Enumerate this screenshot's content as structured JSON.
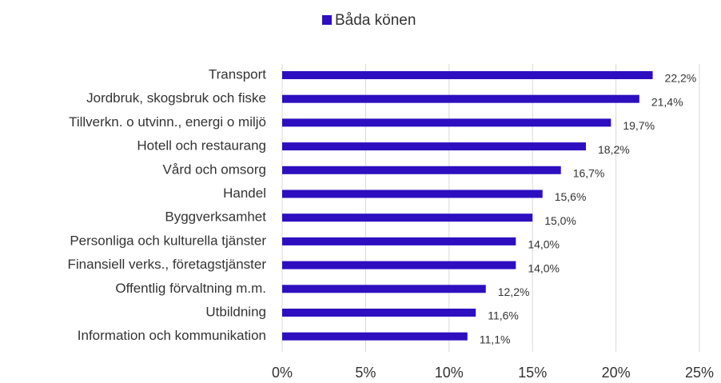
{
  "chart_data": {
    "type": "bar",
    "orientation": "horizontal",
    "legend": "top",
    "series": [
      {
        "name": "Båda könen",
        "color": "#2d0fc0",
        "values": [
          22.2,
          21.4,
          19.7,
          18.2,
          16.7,
          15.6,
          15.0,
          14.0,
          14.0,
          12.2,
          11.6,
          11.1
        ],
        "value_labels": [
          "22,2%",
          "21,4%",
          "19,7%",
          "18,2%",
          "16,7%",
          "15,6%",
          "15,0%",
          "14,0%",
          "14,0%",
          "12,2%",
          "11,6%",
          "11,1%"
        ]
      }
    ],
    "categories": [
      "Transport",
      "Jordbruk, skogsbruk och fiske",
      "Tillverkn. o utvinn., energi o miljö",
      "Hotell och restaurang",
      "Vård och omsorg",
      "Handel",
      "Byggverksamhet",
      "Personliga och kulturella tjänster",
      "Finansiell verks., företagstjänster",
      "Offentlig förvaltning m.m.",
      "Utbildning",
      "Information och kommunikation"
    ],
    "xlim": [
      0,
      25
    ],
    "xticks": [
      {
        "value": 0,
        "label": "0%"
      },
      {
        "value": 5,
        "label": "5%"
      },
      {
        "value": 10,
        "label": "10%"
      },
      {
        "value": 15,
        "label": "15%"
      },
      {
        "value": 20,
        "label": "20%"
      },
      {
        "value": 25,
        "label": "25%"
      }
    ],
    "grid": true
  }
}
